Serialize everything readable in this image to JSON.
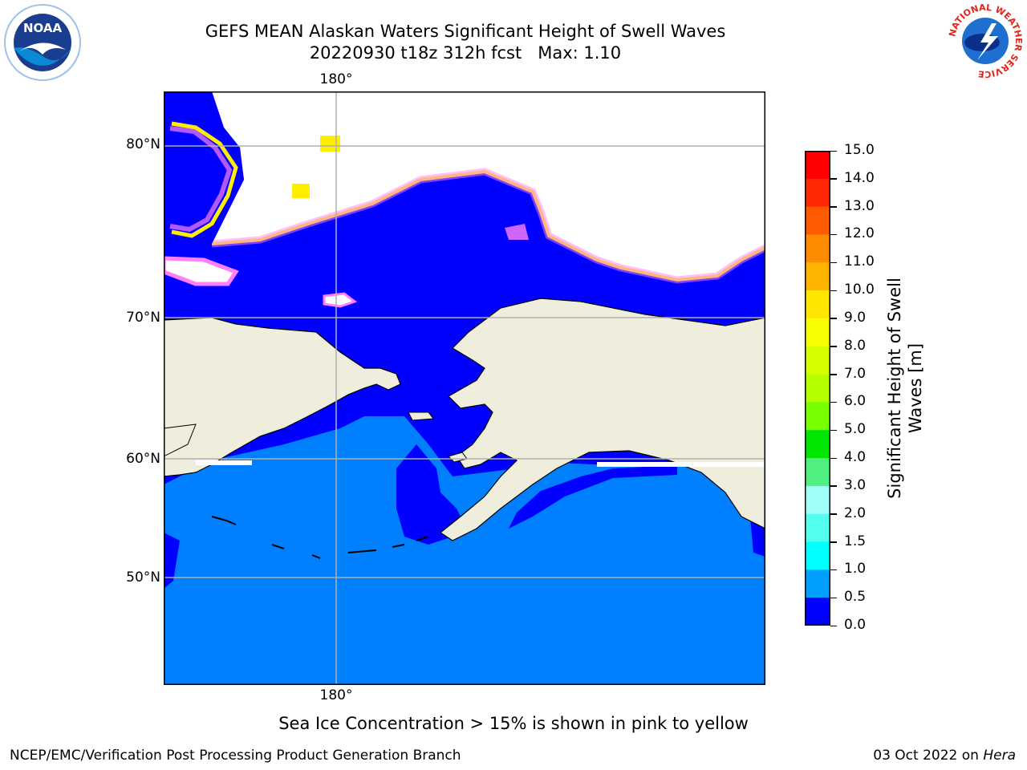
{
  "header": {
    "title_line1": "GEFS MEAN Alaskan Waters Significant Height of Swell Waves",
    "title_line2": "20220930 t18z 312h fcst   Max: 1.10"
  },
  "logos": {
    "left": "NOAA",
    "right_ring_text": "NATIONAL WEATHER SERVICE"
  },
  "map": {
    "lon_top_label": "180°",
    "lon_bottom_label": "180°",
    "lat_labels": [
      "80°N",
      "70°N",
      "60°N",
      "50°N"
    ],
    "colors": {
      "ocean_low": "#0000ff",
      "ocean_mid": "#0080ff",
      "land": "#efeddc",
      "ice": "#ff7fff",
      "ice_edge": "#ffee00",
      "grid": "#b0b0b0"
    }
  },
  "colorbar": {
    "label": "Significant Height of Swell Waves [m]",
    "ticks": [
      "15.0",
      "14.0",
      "13.0",
      "12.0",
      "11.0",
      "10.0",
      "9.0",
      "8.0",
      "7.0",
      "6.0",
      "5.0",
      "4.0",
      "3.0",
      "2.0",
      "1.5",
      "1.0",
      "0.5",
      "0.0"
    ],
    "bins": [
      {
        "color": "#ff0000"
      },
      {
        "color": "#ff2800"
      },
      {
        "color": "#ff5a00"
      },
      {
        "color": "#ff8c00"
      },
      {
        "color": "#ffb400"
      },
      {
        "color": "#ffe600"
      },
      {
        "color": "#f8ff00"
      },
      {
        "color": "#d8ff00"
      },
      {
        "color": "#b4ff00"
      },
      {
        "color": "#78ff00"
      },
      {
        "color": "#00e600"
      },
      {
        "color": "#50f080"
      },
      {
        "color": "#a0fff8"
      },
      {
        "color": "#50fff0"
      },
      {
        "color": "#00ffff"
      },
      {
        "color": "#00a0ff"
      },
      {
        "color": "#0080ff"
      },
      {
        "color": "#0000ff"
      }
    ]
  },
  "notes": {
    "ice": "Sea Ice Concentration > 15% is shown in pink to yellow"
  },
  "footer": {
    "left": "NCEP/EMC/Verification Post Processing Product Generation Branch",
    "date": "03 Oct 2022 on ",
    "machine": "Hera"
  }
}
